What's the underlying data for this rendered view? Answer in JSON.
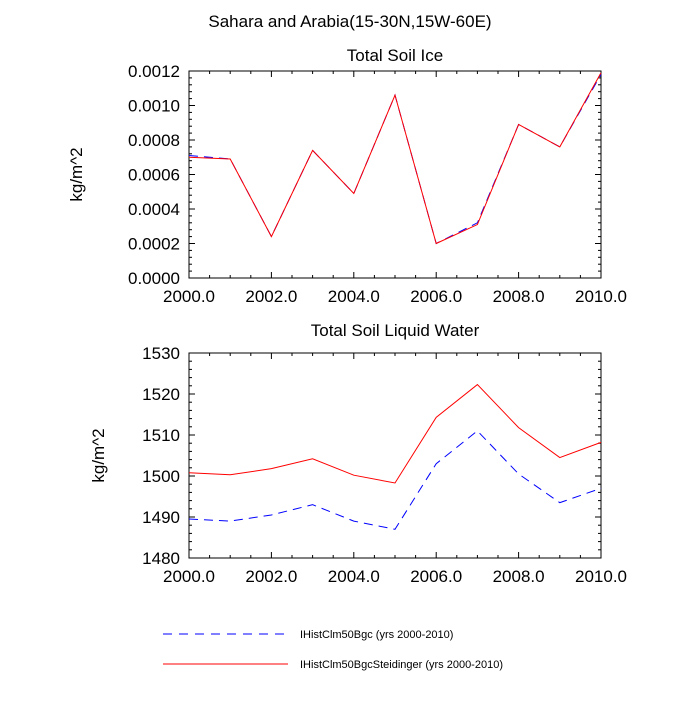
{
  "figure": {
    "title": "Sahara and Arabia(15-30N,15W-60E)"
  },
  "legend": {
    "entries": [
      {
        "label": "IHistClm50Bgc (yrs 2000-2010)",
        "color": "#0000ff",
        "style": "dashed"
      },
      {
        "label": "IHistClm50BgcSteidinger (yrs 2000-2010)",
        "color": "#ff0000",
        "style": "solid"
      }
    ]
  },
  "chart_data": [
    {
      "type": "line",
      "title": "Total Soil Ice",
      "xlabel": "",
      "ylabel": "kg/m^2",
      "xlim": [
        2000,
        2010
      ],
      "ylim": [
        0,
        0.0012
      ],
      "x_ticks": [
        2000,
        2002,
        2004,
        2006,
        2008,
        2010
      ],
      "x_tick_labels": [
        "2000.0",
        "2002.0",
        "2004.0",
        "2006.0",
        "2008.0",
        "2010.0"
      ],
      "y_ticks": [
        0,
        0.0002,
        0.0004,
        0.0006,
        0.0008,
        0.001,
        0.0012
      ],
      "y_tick_labels": [
        "0.0000",
        "0.0002",
        "0.0004",
        "0.0006",
        "0.0008",
        "0.0010",
        "0.0012"
      ],
      "grid": false,
      "x": [
        2000,
        2001,
        2002,
        2003,
        2004,
        2005,
        2006,
        2007,
        2008,
        2009,
        2010
      ],
      "series": [
        {
          "name": "IHistClm50Bgc (yrs 2000-2010)",
          "color": "#0000ff",
          "style": "dashed",
          "values": [
            0.00071,
            0.00069,
            0.00024,
            0.00074,
            0.00049,
            0.00106,
            0.0002,
            0.00032,
            0.00089,
            0.00076,
            0.00118
          ]
        },
        {
          "name": "IHistClm50BgcSteidinger (yrs 2000-2010)",
          "color": "#ff0000",
          "style": "solid",
          "values": [
            0.0007,
            0.00069,
            0.00024,
            0.00074,
            0.00049,
            0.00106,
            0.0002,
            0.00031,
            0.00089,
            0.00076,
            0.00119
          ]
        }
      ]
    },
    {
      "type": "line",
      "title": "Total Soil Liquid Water",
      "xlabel": "",
      "ylabel": "kg/m^2",
      "xlim": [
        2000,
        2010
      ],
      "ylim": [
        1480,
        1530
      ],
      "x_ticks": [
        2000,
        2002,
        2004,
        2006,
        2008,
        2010
      ],
      "x_tick_labels": [
        "2000.0",
        "2002.0",
        "2004.0",
        "2006.0",
        "2008.0",
        "2010.0"
      ],
      "y_ticks": [
        1480,
        1490,
        1500,
        1510,
        1520,
        1530
      ],
      "y_tick_labels": [
        "1480",
        "1490",
        "1500",
        "1510",
        "1520",
        "1530"
      ],
      "grid": false,
      "x": [
        2000,
        2001,
        2002,
        2003,
        2004,
        2005,
        2006,
        2007,
        2008,
        2009,
        2010
      ],
      "series": [
        {
          "name": "IHistClm50Bgc (yrs 2000-2010)",
          "color": "#0000ff",
          "style": "dashed",
          "values": [
            1489.5,
            1489.0,
            1490.5,
            1493.0,
            1489.0,
            1487.0,
            1503.0,
            1511.0,
            1500.5,
            1493.5,
            1497.0
          ]
        },
        {
          "name": "IHistClm50BgcSteidinger (yrs 2000-2010)",
          "color": "#ff0000",
          "style": "solid",
          "values": [
            1500.8,
            1500.3,
            1501.8,
            1504.2,
            1500.2,
            1498.3,
            1514.3,
            1522.3,
            1511.8,
            1504.5,
            1508.2
          ]
        }
      ]
    }
  ]
}
